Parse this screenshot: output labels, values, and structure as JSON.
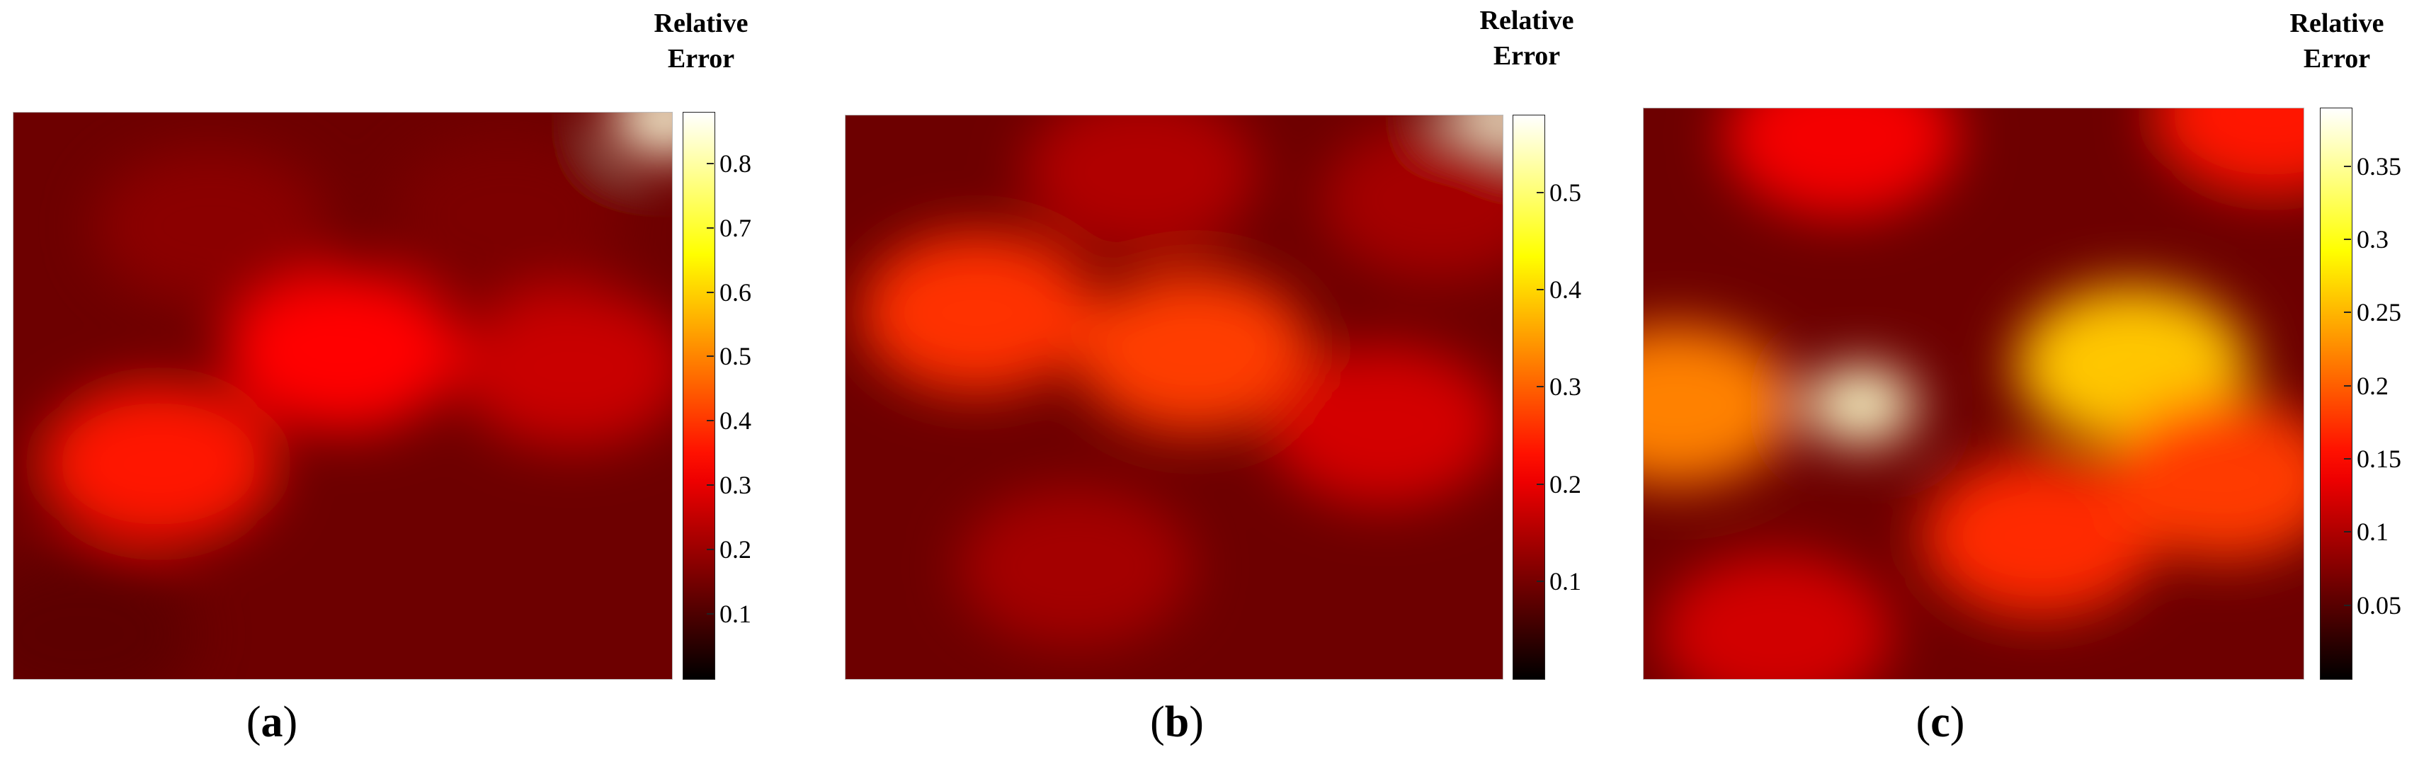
{
  "chart_data": [
    {
      "type": "heatmap",
      "panel_label": {
        "open": "(",
        "letter": "a",
        "close": ")"
      },
      "colorbar_title": [
        "Relative",
        "Error"
      ],
      "colorbar_range": [
        0,
        0.88
      ],
      "colorbar_ticks": [
        "0.1",
        "0.2",
        "0.3",
        "0.4",
        "0.5",
        "0.6",
        "0.7",
        "0.8"
      ],
      "colormap": "hot",
      "hotspots": [
        {
          "x": 0.22,
          "y": 0.62,
          "value": 0.36
        },
        {
          "x": 0.5,
          "y": 0.42,
          "value": 0.33
        },
        {
          "x": 0.85,
          "y": 0.45,
          "value": 0.26
        },
        {
          "x": 0.3,
          "y": 0.2,
          "value": 0.18
        },
        {
          "x": 0.75,
          "y": 0.18,
          "value": 0.16
        },
        {
          "x": 0.99,
          "y": 0.01,
          "value": 0.85
        },
        {
          "x": 0.1,
          "y": 0.92,
          "value": 0.12
        }
      ]
    },
    {
      "type": "heatmap",
      "panel_label": {
        "open": "(",
        "letter": "b",
        "close": ")"
      },
      "colorbar_title": [
        "Relative",
        "Error"
      ],
      "colorbar_range": [
        0,
        0.58
      ],
      "colorbar_ticks": [
        "0.1",
        "0.2",
        "0.3",
        "0.4",
        "0.5"
      ],
      "colormap": "hot",
      "hotspots": [
        {
          "x": 0.2,
          "y": 0.35,
          "value": 0.26
        },
        {
          "x": 0.53,
          "y": 0.42,
          "value": 0.27
        },
        {
          "x": 0.82,
          "y": 0.55,
          "value": 0.18
        },
        {
          "x": 0.45,
          "y": 0.1,
          "value": 0.15
        },
        {
          "x": 0.35,
          "y": 0.8,
          "value": 0.14
        },
        {
          "x": 0.99,
          "y": 0.01,
          "value": 0.56
        },
        {
          "x": 0.9,
          "y": 0.15,
          "value": 0.14
        }
      ]
    },
    {
      "type": "heatmap",
      "panel_label": {
        "open": "(",
        "letter": "c",
        "close": ")"
      },
      "colorbar_title": [
        "Relative",
        "Error"
      ],
      "colorbar_range": [
        0,
        0.39
      ],
      "colorbar_ticks": [
        "0.05",
        "0.1",
        "0.15",
        "0.2",
        "0.25",
        "0.3",
        "0.35"
      ],
      "colormap": "hot",
      "hotspots": [
        {
          "x": 0.33,
          "y": 0.52,
          "value": 0.37
        },
        {
          "x": 0.74,
          "y": 0.45,
          "value": 0.26
        },
        {
          "x": 0.05,
          "y": 0.52,
          "value": 0.22
        },
        {
          "x": 0.6,
          "y": 0.75,
          "value": 0.17
        },
        {
          "x": 0.88,
          "y": 0.65,
          "value": 0.18
        },
        {
          "x": 0.3,
          "y": 0.05,
          "value": 0.14
        },
        {
          "x": 0.2,
          "y": 0.92,
          "value": 0.12
        },
        {
          "x": 0.95,
          "y": 0.01,
          "value": 0.16
        }
      ]
    }
  ]
}
